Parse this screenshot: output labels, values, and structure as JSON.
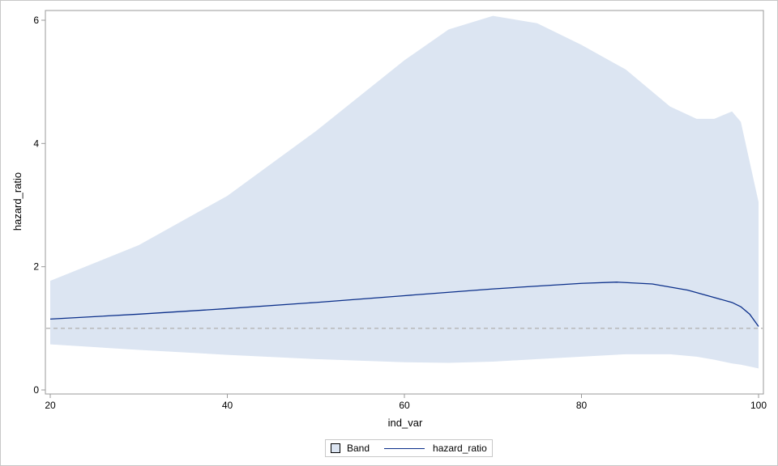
{
  "chart_data": {
    "type": "area",
    "title": "",
    "xlabel": "ind_var",
    "ylabel": "hazard_ratio",
    "xlim": [
      20,
      100
    ],
    "ylim": [
      0,
      6
    ],
    "x_ticks": [
      20,
      40,
      60,
      80,
      100
    ],
    "y_ticks": [
      0,
      2,
      4,
      6
    ],
    "grid": false,
    "legend_position": "bottom",
    "reference_line": {
      "y": 1,
      "style": "dashed",
      "color": "#b4b4b4"
    },
    "series": [
      {
        "name": "Band",
        "kind": "band",
        "color": "#dce5f2",
        "x": [
          20,
          30,
          40,
          50,
          60,
          65,
          70,
          75,
          80,
          85,
          90,
          93,
          95,
          97,
          98,
          100
        ],
        "upper": [
          1.77,
          2.35,
          3.15,
          4.2,
          5.35,
          5.85,
          6.07,
          5.95,
          5.6,
          5.2,
          4.6,
          4.4,
          4.4,
          4.52,
          4.35,
          3.05
        ],
        "lower": [
          0.74,
          0.65,
          0.57,
          0.5,
          0.45,
          0.44,
          0.46,
          0.5,
          0.54,
          0.58,
          0.58,
          0.54,
          0.49,
          0.43,
          0.41,
          0.35
        ]
      },
      {
        "name": "hazard_ratio",
        "kind": "line",
        "color": "#0b2f8a",
        "x": [
          20,
          30,
          40,
          50,
          60,
          70,
          80,
          84,
          88,
          92,
          95,
          97,
          98,
          99,
          100
        ],
        "values": [
          1.15,
          1.23,
          1.32,
          1.42,
          1.53,
          1.64,
          1.73,
          1.75,
          1.72,
          1.62,
          1.5,
          1.42,
          1.35,
          1.23,
          1.03
        ]
      }
    ]
  },
  "legend": {
    "band_label": "Band",
    "line_label": "hazard_ratio"
  }
}
